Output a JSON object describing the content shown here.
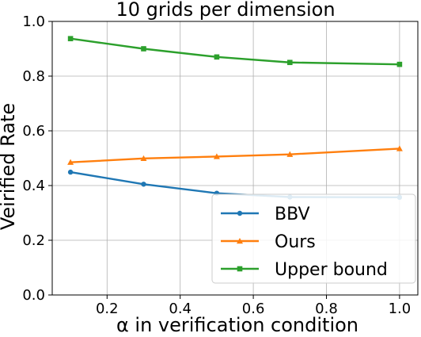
{
  "chart_data": {
    "type": "line",
    "title": "10 grids per dimension",
    "xlabel": "α in verification condition",
    "ylabel": "Veirified Rate",
    "xlim": [
      0.05,
      1.05
    ],
    "ylim": [
      0.0,
      1.0
    ],
    "xticks": [
      "0.2",
      "0.4",
      "0.6",
      "0.8",
      "1.0"
    ],
    "yticks": [
      "0.0",
      "0.2",
      "0.4",
      "0.6",
      "0.8",
      "1.0"
    ],
    "grid": true,
    "legend_position": "lower-right",
    "series": [
      {
        "name": "BBV",
        "color": "#1f77b4",
        "marker": "circle",
        "x": [
          0.1,
          0.3,
          0.5,
          0.7,
          1.0
        ],
        "y": [
          0.449,
          0.405,
          0.372,
          0.358,
          0.357
        ]
      },
      {
        "name": "Ours",
        "color": "#ff7f0e",
        "marker": "triangle",
        "x": [
          0.1,
          0.3,
          0.5,
          0.7,
          1.0
        ],
        "y": [
          0.485,
          0.499,
          0.506,
          0.514,
          0.535
        ]
      },
      {
        "name": "Upper bound",
        "color": "#2ca02c",
        "marker": "square",
        "x": [
          0.1,
          0.3,
          0.5,
          0.7,
          1.0
        ],
        "y": [
          0.937,
          0.9,
          0.87,
          0.85,
          0.843
        ]
      }
    ]
  }
}
